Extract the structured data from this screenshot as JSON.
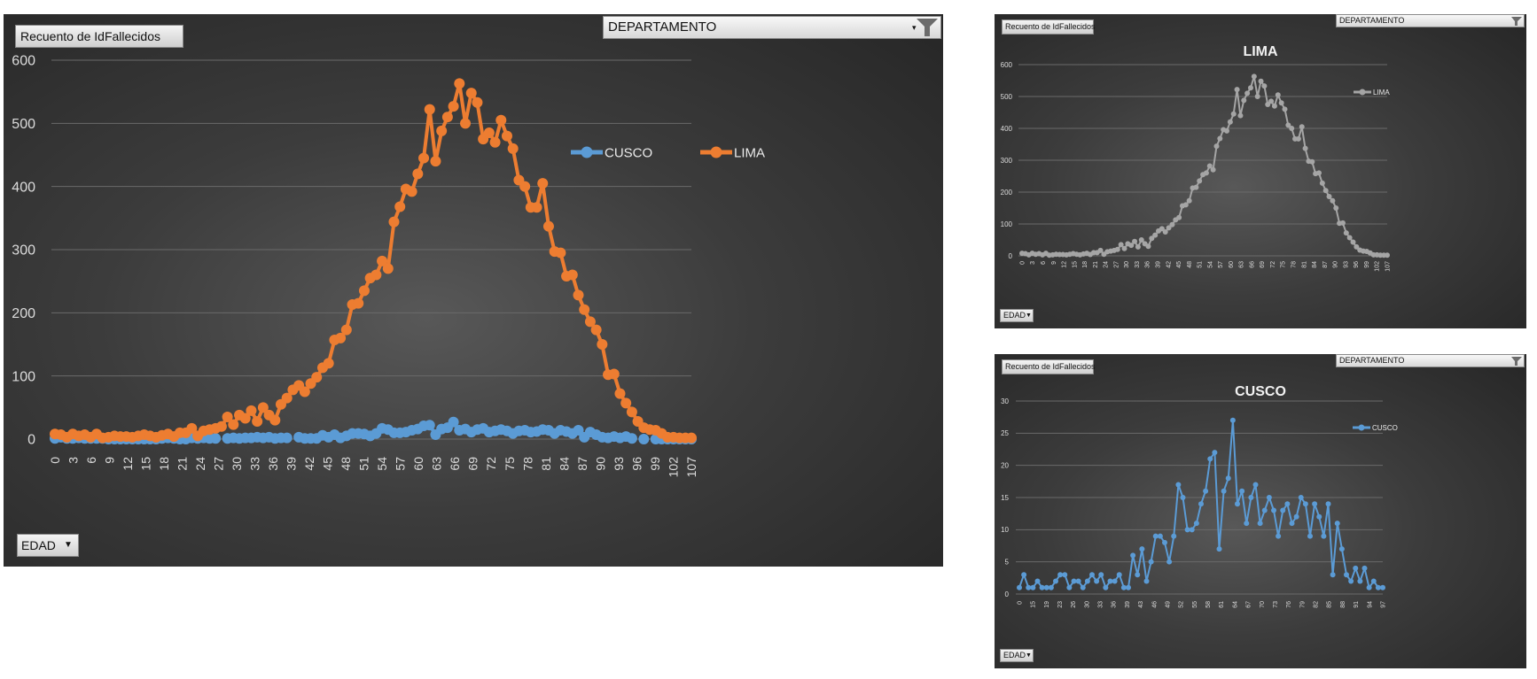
{
  "pivot": {
    "value_field": "Recuento de IdFallecidos",
    "filter_field": "DEPARTAMENTO",
    "axis_field": "EDAD"
  },
  "colors": {
    "LIMA_main": "#ed7d31",
    "CUSCO": "#5b9bd5",
    "LIMA_gray": "#a5a5a5"
  },
  "chart_data": [
    {
      "id": "main",
      "type": "line",
      "title": "",
      "xlabel": "EDAD",
      "ylabel": "Recuento de IdFallecidos",
      "ylim": [
        0,
        600
      ],
      "yticks": [
        0,
        100,
        200,
        300,
        400,
        500,
        600
      ],
      "x": [
        0,
        1,
        2,
        3,
        4,
        5,
        6,
        7,
        8,
        9,
        10,
        11,
        12,
        13,
        14,
        15,
        16,
        17,
        18,
        19,
        20,
        21,
        22,
        23,
        24,
        25,
        26,
        27,
        28,
        29,
        30,
        31,
        32,
        33,
        34,
        35,
        36,
        37,
        38,
        39,
        40,
        41,
        42,
        43,
        44,
        45,
        46,
        47,
        48,
        49,
        50,
        51,
        52,
        53,
        54,
        55,
        56,
        57,
        58,
        59,
        60,
        61,
        62,
        63,
        64,
        65,
        66,
        67,
        68,
        69,
        70,
        71,
        72,
        73,
        74,
        75,
        76,
        77,
        78,
        79,
        80,
        81,
        82,
        83,
        84,
        85,
        86,
        87,
        88,
        89,
        90,
        91,
        92,
        93,
        94,
        95,
        96,
        97,
        98,
        99,
        100,
        101,
        102,
        103,
        104,
        105,
        106,
        107
      ],
      "xtick_labels": [
        "0",
        "3",
        "6",
        "9",
        "12",
        "15",
        "18",
        "21",
        "24",
        "27",
        "30",
        "33",
        "36",
        "39",
        "42",
        "45",
        "48",
        "51",
        "54",
        "57",
        "60",
        "63",
        "66",
        "69",
        "72",
        "75",
        "78",
        "81",
        "84",
        "87",
        "90",
        "93",
        "96",
        "99",
        "102",
        "107"
      ],
      "legend": "right",
      "series": [
        {
          "name": "CUSCO",
          "color": "#5b9bd5",
          "values": [
            1,
            3,
            1,
            1,
            2,
            1,
            1,
            1,
            1,
            0,
            0,
            0,
            0,
            0,
            0,
            0,
            0,
            0,
            1,
            2,
            1,
            0,
            0,
            2,
            1,
            2,
            1,
            1,
            null,
            1,
            2,
            1,
            2,
            2,
            3,
            2,
            3,
            1,
            2,
            2,
            null,
            3,
            1,
            1,
            1,
            6,
            3,
            7,
            2,
            5,
            9,
            9,
            8,
            5,
            9,
            17,
            15,
            10,
            10,
            11,
            14,
            16,
            21,
            22,
            7,
            16,
            18,
            27,
            14,
            16,
            11,
            15,
            17,
            11,
            13,
            15,
            13,
            9,
            13,
            14,
            11,
            12,
            15,
            14,
            9,
            14,
            12,
            9,
            14,
            3,
            11,
            7,
            3,
            2,
            4,
            2,
            4,
            1,
            null,
            0,
            null,
            0,
            0,
            0,
            0,
            0,
            0,
            0
          ]
        },
        {
          "name": "LIMA",
          "color": "#ed7d31",
          "values": [
            8,
            7,
            3,
            8,
            5,
            7,
            3,
            8,
            2,
            3,
            5,
            4,
            4,
            3,
            5,
            7,
            5,
            3,
            6,
            8,
            4,
            10,
            10,
            17,
            5,
            13,
            15,
            17,
            20,
            35,
            23,
            38,
            33,
            45,
            28,
            50,
            38,
            30,
            55,
            65,
            78,
            85,
            75,
            88,
            98,
            113,
            120,
            157,
            160,
            173,
            213,
            215,
            235,
            255,
            260,
            282,
            270,
            344,
            368,
            396,
            392,
            420,
            445,
            522,
            440,
            488,
            510,
            527,
            563,
            500,
            548,
            533,
            475,
            485,
            470,
            505,
            480,
            460,
            410,
            400,
            367,
            367,
            405,
            337,
            297,
            295,
            258,
            260,
            228,
            205,
            186,
            173,
            150,
            102,
            103,
            72,
            57,
            43,
            28,
            18,
            15,
            14,
            9,
            3,
            3,
            2,
            2,
            2
          ]
        }
      ]
    },
    {
      "id": "lima",
      "type": "line",
      "title": "LIMA",
      "xlabel": "EDAD",
      "ylim": [
        0,
        600
      ],
      "yticks": [
        0,
        100,
        200,
        300,
        400,
        500,
        600
      ],
      "xtick_labels": [
        "0",
        "3",
        "6",
        "9",
        "12",
        "15",
        "18",
        "21",
        "24",
        "27",
        "30",
        "33",
        "36",
        "39",
        "42",
        "45",
        "48",
        "51",
        "54",
        "57",
        "60",
        "63",
        "66",
        "69",
        "72",
        "75",
        "78",
        "81",
        "84",
        "87",
        "90",
        "93",
        "96",
        "99",
        "102",
        "107"
      ],
      "legend": "right",
      "series": [
        {
          "name": "LIMA",
          "color": "#a5a5a5",
          "values": [
            8,
            7,
            3,
            8,
            5,
            7,
            3,
            8,
            2,
            3,
            5,
            4,
            4,
            3,
            5,
            7,
            5,
            3,
            6,
            8,
            4,
            10,
            10,
            17,
            5,
            13,
            15,
            17,
            20,
            35,
            23,
            38,
            33,
            45,
            28,
            50,
            38,
            30,
            55,
            65,
            78,
            85,
            75,
            88,
            98,
            113,
            120,
            157,
            160,
            173,
            213,
            215,
            235,
            255,
            260,
            282,
            270,
            344,
            368,
            396,
            392,
            420,
            445,
            522,
            440,
            488,
            510,
            527,
            563,
            500,
            548,
            533,
            475,
            485,
            470,
            505,
            480,
            460,
            410,
            400,
            367,
            367,
            405,
            337,
            297,
            295,
            258,
            260,
            228,
            205,
            186,
            173,
            150,
            102,
            103,
            72,
            57,
            43,
            28,
            18,
            15,
            14,
            9,
            3,
            3,
            2,
            2,
            2
          ]
        }
      ]
    },
    {
      "id": "cusco",
      "type": "line",
      "title": "CUSCO",
      "xlabel": "EDAD",
      "ylim": [
        0,
        30
      ],
      "yticks": [
        0,
        5,
        10,
        15,
        20,
        25,
        30
      ],
      "xtick_labels": [
        "0",
        "15",
        "19",
        "23",
        "26",
        "30",
        "33",
        "36",
        "39",
        "43",
        "46",
        "49",
        "52",
        "55",
        "58",
        "61",
        "64",
        "67",
        "70",
        "73",
        "76",
        "79",
        "82",
        "85",
        "88",
        "91",
        "94",
        "97"
      ],
      "legend": "right",
      "series": [
        {
          "name": "CUSCO",
          "color": "#5b9bd5",
          "values": [
            1,
            3,
            1,
            1,
            2,
            1,
            1,
            1,
            2,
            3,
            3,
            1,
            2,
            2,
            1,
            2,
            3,
            2,
            3,
            1,
            2,
            2,
            3,
            1,
            1,
            6,
            3,
            7,
            2,
            5,
            9,
            9,
            8,
            5,
            9,
            17,
            15,
            10,
            10,
            11,
            14,
            16,
            21,
            22,
            7,
            16,
            18,
            27,
            14,
            16,
            11,
            15,
            17,
            11,
            13,
            15,
            13,
            9,
            13,
            14,
            11,
            12,
            15,
            14,
            9,
            14,
            12,
            9,
            14,
            3,
            11,
            7,
            3,
            2,
            4,
            2,
            4,
            1,
            2,
            1,
            1
          ]
        }
      ]
    }
  ]
}
